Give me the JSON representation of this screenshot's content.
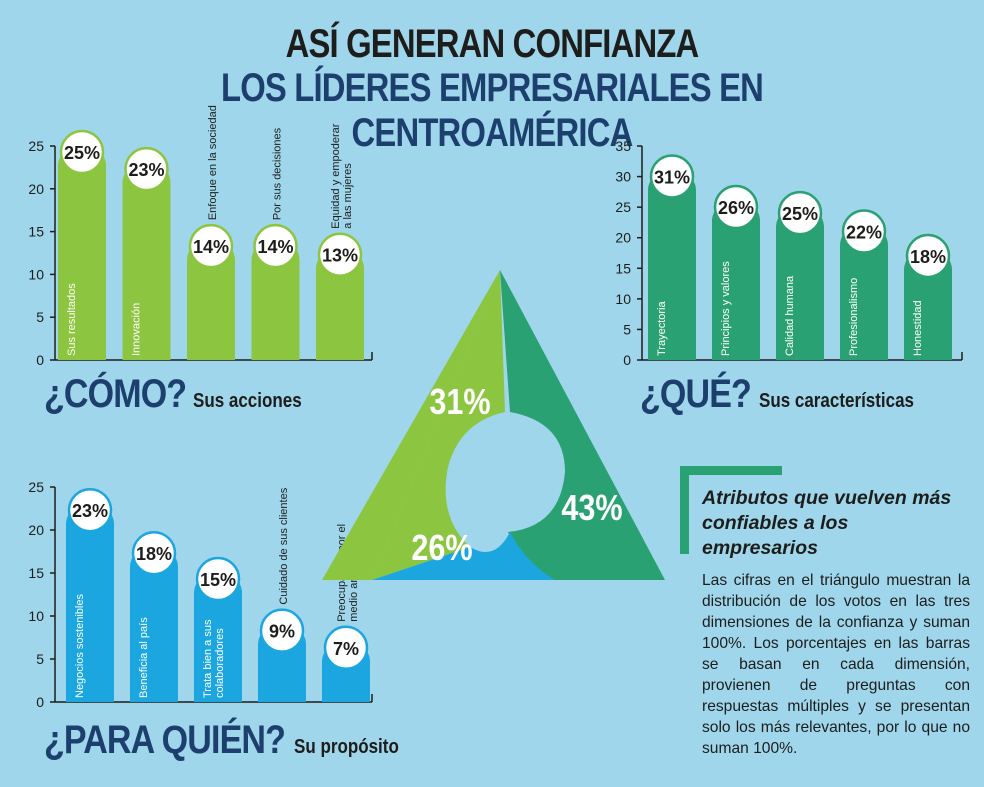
{
  "header": {
    "title_line1": "ASÍ GENERAN CONFIANZA",
    "title_line2": "LOS LÍDERES EMPRESARIALES EN CENTROAMÉRICA"
  },
  "sections": {
    "como": {
      "question": "¿CÓMO?",
      "subtitle": "Sus acciones"
    },
    "que": {
      "question": "¿QUÉ?",
      "subtitle": "Sus características"
    },
    "para_quien": {
      "question": "¿PARA QUIÉN?",
      "subtitle": "Su propósito"
    }
  },
  "sidebar": {
    "title": "Atributos que vuelven más confiables a los empresarios",
    "body": "Las cifras en el triángulo muestran la distribución de los votos en las tres dimensiones de la confianza y suman 100%. Los porcentajes en las barras se basan en cada dimensión, provienen de preguntas con respuestas múltiples y se presentan solo los más relevantes, por lo que no suman 100%."
  },
  "colors": {
    "green_light": "#8cc540",
    "green_dark": "#2aa172",
    "blue": "#1ba6e0",
    "background": "#9fd6ec",
    "navy": "#1c3f6e"
  },
  "chart_data": [
    {
      "type": "bar",
      "categories": [
        "Sus resultados",
        "Innovación",
        "Enfoque en la sociedad",
        "Por sus decisiones",
        "Equidad y empoderar a las mujeres"
      ],
      "values": [
        25,
        23,
        14,
        14,
        13
      ],
      "labels": [
        "25%",
        "23%",
        "14%",
        "14%",
        "13%"
      ],
      "ylim": [
        0,
        25
      ],
      "yticks": [
        "0",
        "5",
        "10",
        "15",
        "20",
        "25"
      ],
      "color": "#8cc540"
    },
    {
      "type": "bar",
      "categories": [
        "Trayectoria",
        "Principios y valores",
        "Calidad humana",
        "Profesionalismo",
        "Honestidad"
      ],
      "values": [
        31,
        26,
        25,
        22,
        18
      ],
      "labels": [
        "31%",
        "26%",
        "25%",
        "22%",
        "18%"
      ],
      "ylim": [
        0,
        35
      ],
      "yticks": [
        "0",
        "5",
        "10",
        "15",
        "20",
        "25",
        "30",
        "35"
      ],
      "color": "#2aa172"
    },
    {
      "type": "bar",
      "categories": [
        "Negocios sostenibles",
        "Beneficia al país",
        "Trata bien a sus colaboradores",
        "Cuidado de sus clientes",
        "Preocupación por el medio ambiente"
      ],
      "values": [
        23,
        18,
        15,
        9,
        7
      ],
      "labels": [
        "23%",
        "18%",
        "15%",
        "9%",
        "7%"
      ],
      "ylim": [
        0,
        25
      ],
      "yticks": [
        "0",
        "5",
        "10",
        "15",
        "20",
        "25"
      ],
      "color": "#1ba6e0"
    },
    {
      "type": "pie",
      "categories": [
        "¿CÓMO?",
        "¿QUÉ?",
        "¿PARA QUIÉN?"
      ],
      "values": [
        31,
        43,
        26
      ],
      "labels": [
        "31%",
        "43%",
        "26%"
      ],
      "colors": [
        "#8cc540",
        "#2aa172",
        "#1ba6e0"
      ]
    }
  ]
}
